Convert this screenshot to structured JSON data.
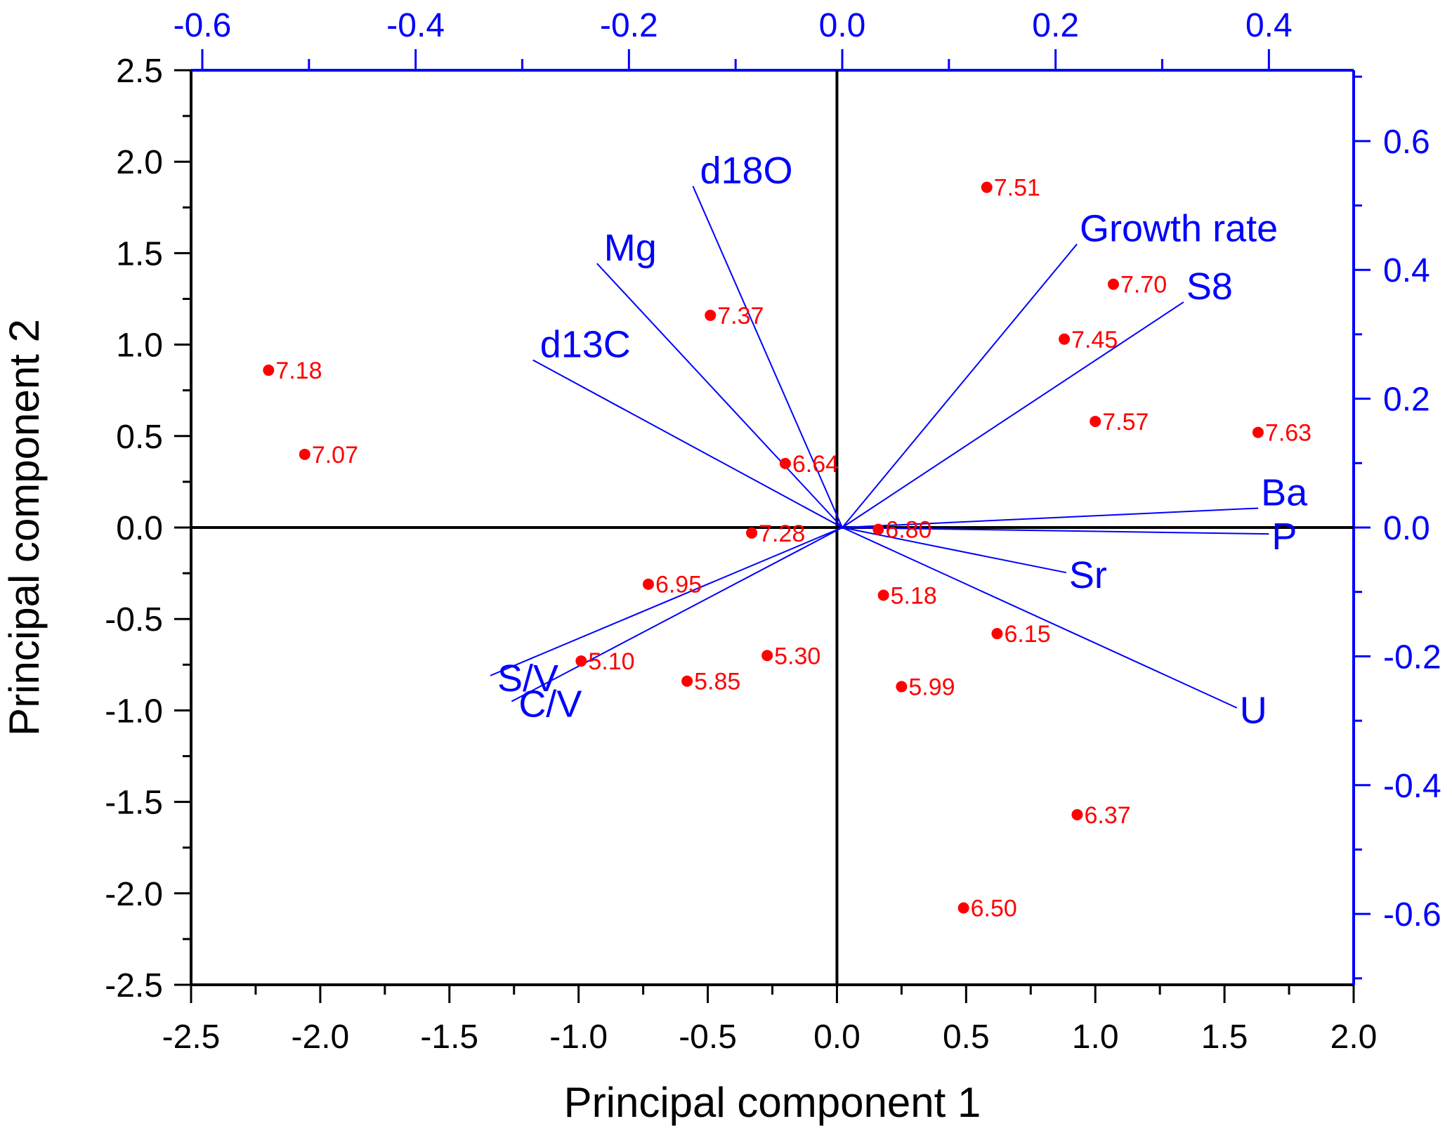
{
  "chart_data": {
    "type": "scatter",
    "subtype": "pca-biplot",
    "title": "",
    "xlabel": "Principal component 1",
    "ylabel": "Principal component 2",
    "xlim": [
      -2.5,
      2.0
    ],
    "ylim": [
      -2.5,
      2.5
    ],
    "x_ticks": [
      "-2.5",
      "-2.0",
      "-1.5",
      "-1.0",
      "-0.5",
      "0.0",
      "0.5",
      "1.0",
      "1.5",
      "2.0"
    ],
    "y_ticks": [
      "-2.5",
      "-2.0",
      "-1.5",
      "-1.0",
      "-0.5",
      "0.0",
      "0.5",
      "1.0",
      "1.5",
      "2.0",
      "2.5"
    ],
    "loading_axes": {
      "top_xlim": [
        -0.6,
        0.49
      ],
      "right_ylim": [
        -0.71,
        0.71
      ],
      "top_ticks": [
        "-0.6",
        "-0.4",
        "-0.2",
        "0.0",
        "0.2",
        "0.4"
      ],
      "right_ticks": [
        "-0.6",
        "-0.4",
        "-0.2",
        "0.0",
        "0.2",
        "0.4",
        "0.6"
      ]
    },
    "grid": false,
    "score_color": "#ff0000",
    "loading_color": "#0000ff",
    "series": [
      {
        "name": "scores",
        "points": [
          {
            "label": "7.51",
            "x": 0.58,
            "y": 1.86
          },
          {
            "label": "7.70",
            "x": 1.07,
            "y": 1.33
          },
          {
            "label": "7.45",
            "x": 0.88,
            "y": 1.03
          },
          {
            "label": "7.57",
            "x": 1.0,
            "y": 0.58
          },
          {
            "label": "7.63",
            "x": 1.63,
            "y": 0.52
          },
          {
            "label": "7.37",
            "x": -0.49,
            "y": 1.16
          },
          {
            "label": "7.18",
            "x": -2.2,
            "y": 0.86
          },
          {
            "label": "7.07",
            "x": -2.06,
            "y": 0.4
          },
          {
            "label": "6.64",
            "x": -0.2,
            "y": 0.35
          },
          {
            "label": "7.28",
            "x": -0.33,
            "y": -0.03
          },
          {
            "label": "6.80",
            "x": 0.16,
            "y": -0.01
          },
          {
            "label": "6.95",
            "x": -0.73,
            "y": -0.31
          },
          {
            "label": "5.10",
            "x": -0.99,
            "y": -0.73
          },
          {
            "label": "5.85",
            "x": -0.58,
            "y": -0.84
          },
          {
            "label": "5.30",
            "x": -0.27,
            "y": -0.7
          },
          {
            "label": "5.18",
            "x": 0.18,
            "y": -0.37
          },
          {
            "label": "6.15",
            "x": 0.62,
            "y": -0.58
          },
          {
            "label": "5.99",
            "x": 0.25,
            "y": -0.87
          },
          {
            "label": "6.37",
            "x": 0.93,
            "y": -1.57
          },
          {
            "label": "6.50",
            "x": 0.49,
            "y": -2.08
          }
        ]
      },
      {
        "name": "loadings",
        "vectors": [
          {
            "label": "d18O",
            "x": -0.14,
            "y": 0.53
          },
          {
            "label": "Mg",
            "x": -0.23,
            "y": 0.41
          },
          {
            "label": "d13C",
            "x": -0.29,
            "y": 0.26
          },
          {
            "label": "Growth rate",
            "x": 0.22,
            "y": 0.44
          },
          {
            "label": "S8",
            "x": 0.32,
            "y": 0.35
          },
          {
            "label": "Ba",
            "x": 0.39,
            "y": 0.03
          },
          {
            "label": "P",
            "x": 0.4,
            "y": -0.01
          },
          {
            "label": "Sr",
            "x": 0.21,
            "y": -0.07
          },
          {
            "label": "U",
            "x": 0.37,
            "y": -0.28
          },
          {
            "label": "S/V",
            "x": -0.33,
            "y": -0.23
          },
          {
            "label": "C/V",
            "x": -0.31,
            "y": -0.27
          }
        ]
      }
    ]
  }
}
